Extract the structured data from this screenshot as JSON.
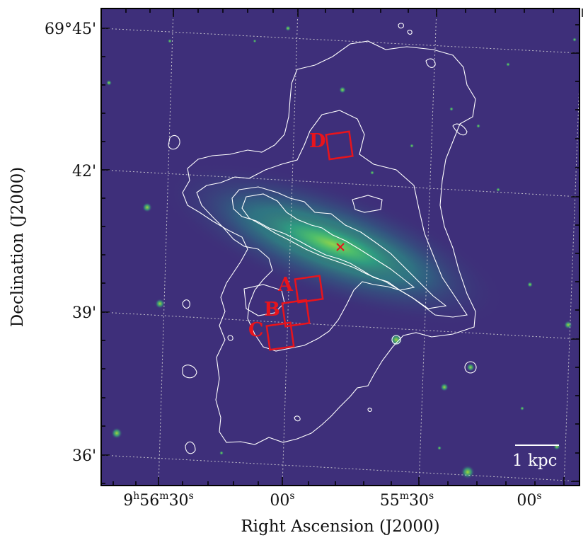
{
  "figure": {
    "colors": {
      "sky": "#3e2f7a",
      "galaxy_mid": "#1f8f8a",
      "galaxy_core": "#8fd54b",
      "contour": "#ffffff",
      "markers": "#e8141c",
      "grid": "#d8d8d8",
      "frame": "#000000"
    },
    "x_axis": {
      "title": "Right Ascension (J2000)",
      "ticks": [
        {
          "h": "9",
          "m": "56",
          "s": "30",
          "ms": "s"
        },
        {
          "label": "00",
          "sup": "s"
        },
        {
          "m": "55",
          "s": "30",
          "ms": "s"
        },
        {
          "label": "00",
          "sup": "s"
        }
      ]
    },
    "y_axis": {
      "title": "Declination (J2000)",
      "ticks": [
        "69°45'",
        "42'",
        "39'",
        "36'"
      ]
    },
    "regions": [
      {
        "label": "D"
      },
      {
        "label": "A"
      },
      {
        "label": "B"
      },
      {
        "label": "C"
      }
    ],
    "center_marker": "cross-icon",
    "scale_bar": {
      "label": "1 kpc"
    }
  }
}
